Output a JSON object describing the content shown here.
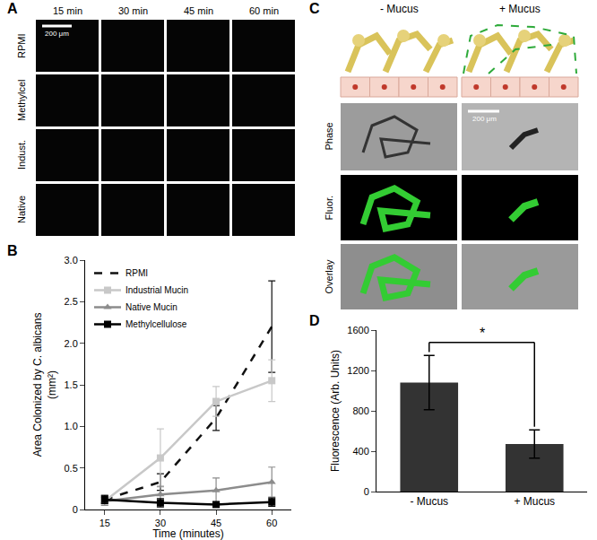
{
  "figure": {
    "panel_A": {
      "label": "A",
      "columns": [
        "15 min",
        "30 min",
        "45 min",
        "60 min"
      ],
      "rows": [
        "RPMI",
        "Methylcel",
        "Indust.",
        "Native"
      ],
      "scale_bar": "200 μm"
    },
    "panel_C": {
      "label": "C",
      "columns": [
        "- Mucus",
        "+ Mucus"
      ],
      "rows": [
        "Phase",
        "Fluor.",
        "Overlay"
      ],
      "scale_bar": "200 μm"
    }
  },
  "chart_data": [
    {
      "label": "B",
      "type": "line",
      "categories": [
        "15",
        "30",
        "45",
        "60"
      ],
      "xlabel": "Time (minutes)",
      "ylabel": [
        "Area Colonized by C. albicans",
        "(mm²)"
      ],
      "ylim": [
        0,
        3
      ],
      "yticks": [
        0,
        0.5,
        {
          "value": 1,
          "label": "1.0"
        },
        1.5,
        {
          "value": 2,
          "label": "2.0"
        },
        2.5,
        {
          "value": 3,
          "label": "3.0"
        }
      ],
      "legend": "upper left",
      "grid": false,
      "series": [
        {
          "name": "RPMI",
          "color": "#111111",
          "line_style": "dashed",
          "marker": "none",
          "values": [
            0.12,
            0.33,
            1.1,
            2.2
          ],
          "errors": [
            0.05,
            0.1,
            0.15,
            0.55
          ]
        },
        {
          "name": "Industrial Mucin",
          "color": "#c8c8c8",
          "line_style": "solid",
          "marker": "square",
          "values": [
            0.1,
            0.62,
            1.3,
            1.55
          ],
          "errors": [
            0.05,
            0.35,
            0.18,
            0.25
          ]
        },
        {
          "name": "Native Mucin",
          "color": "#8c8c8c",
          "line_style": "solid",
          "marker": "triangle",
          "values": [
            0.1,
            0.18,
            0.23,
            0.33
          ],
          "errors": [
            0.05,
            0.1,
            0.15,
            0.18
          ]
        },
        {
          "name": "Methylcellulose",
          "color": "#000000",
          "line_style": "solid",
          "marker": "square",
          "values": [
            0.12,
            0.08,
            0.06,
            0.09
          ],
          "errors": [
            0.05,
            0.05,
            0.03,
            0.05
          ]
        }
      ]
    },
    {
      "label": "D",
      "type": "bar",
      "categories": [
        "- Mucus",
        "+ Mucus"
      ],
      "values": [
        1080,
        470
      ],
      "errors": [
        270,
        140
      ],
      "color": "#333333",
      "ylabel": "Fluorescence (Arb. Units)",
      "ylim": [
        0,
        1600
      ],
      "yticks": [
        0,
        400,
        800,
        1200,
        1600
      ],
      "grid": false,
      "significance": {
        "between": [
          "- Mucus",
          "+ Mucus"
        ],
        "text": "*"
      }
    }
  ]
}
